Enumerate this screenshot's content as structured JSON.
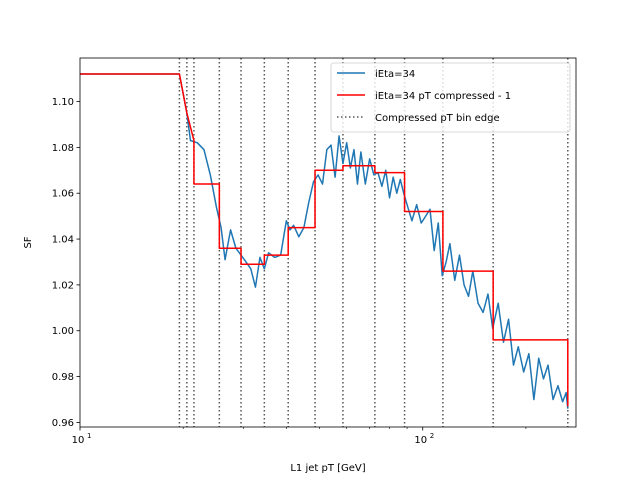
{
  "chart_data": {
    "type": "line",
    "xscale": "log",
    "xlim": [
      10,
      280
    ],
    "ylim": [
      0.958,
      1.119
    ],
    "xlabel": "L1 jet pT [GeV]",
    "ylabel": "SF",
    "grid": false,
    "legend_position": "top-right",
    "x_tick_labels": [
      {
        "value": 10,
        "base": "10",
        "exp": "1"
      },
      {
        "value": 100,
        "base": "10",
        "exp": "2"
      }
    ],
    "y_ticks": [
      0.96,
      0.98,
      1.0,
      1.02,
      1.04,
      1.06,
      1.08,
      1.1
    ],
    "y_tick_labels": [
      "0.96",
      "0.98",
      "1.00",
      "1.02",
      "1.04",
      "1.06",
      "1.08",
      "1.10"
    ],
    "bin_edges": [
      19.5,
      20.5,
      21.5,
      25.5,
      29.5,
      34.5,
      40.5,
      48.5,
      58.5,
      72.5,
      88.5,
      114.5,
      160.5,
      265
    ],
    "series": [
      {
        "name": "iEta=34",
        "color": "#1f77b4",
        "style": "solid",
        "x": [
          10,
          19.5,
          20.5,
          21,
          22,
          23,
          24,
          25,
          25.8,
          26.5,
          27.5,
          28.5,
          29.5,
          30.5,
          31.5,
          32.5,
          33.5,
          34.5,
          35.5,
          37,
          38.5,
          40,
          41,
          42,
          43.5,
          45,
          46.5,
          48,
          49.5,
          51,
          52.5,
          54,
          55.5,
          57,
          58.5,
          60,
          61.5,
          63,
          64.5,
          66,
          68,
          70,
          72,
          74,
          76,
          78,
          80,
          82,
          84,
          86,
          88,
          90,
          93,
          96,
          99,
          102,
          105,
          108,
          111,
          114,
          117,
          120,
          124,
          128,
          132,
          136,
          140,
          145,
          150,
          155,
          160,
          166,
          172,
          178,
          184,
          190,
          197,
          204,
          211,
          218,
          225,
          232,
          240,
          248,
          256,
          262,
          265
        ],
        "y": [
          1.112,
          1.112,
          1.095,
          1.083,
          1.082,
          1.079,
          1.068,
          1.054,
          1.045,
          1.031,
          1.044,
          1.036,
          1.033,
          1.03,
          1.027,
          1.019,
          1.032,
          1.027,
          1.034,
          1.032,
          1.033,
          1.048,
          1.044,
          1.046,
          1.041,
          1.045,
          1.056,
          1.065,
          1.068,
          1.064,
          1.079,
          1.081,
          1.067,
          1.085,
          1.073,
          1.082,
          1.071,
          1.079,
          1.064,
          1.078,
          1.064,
          1.075,
          1.068,
          1.069,
          1.063,
          1.07,
          1.058,
          1.067,
          1.06,
          1.066,
          1.06,
          1.055,
          1.048,
          1.055,
          1.047,
          1.05,
          1.053,
          1.035,
          1.047,
          1.024,
          1.03,
          1.038,
          1.022,
          1.033,
          1.02,
          1.015,
          1.026,
          1.012,
          1.008,
          1.016,
          1.001,
          1.012,
          0.995,
          1.005,
          0.985,
          0.993,
          0.982,
          0.99,
          0.97,
          0.988,
          0.979,
          0.985,
          0.97,
          0.976,
          0.969,
          0.973,
          0.966
        ]
      },
      {
        "name": "iEta=34 pT compressed - 1",
        "color": "#ff0000",
        "style": "step",
        "x": [
          10,
          19.5,
          20.5,
          21.5,
          21.5,
          25.5,
          25.5,
          29.5,
          29.5,
          34.5,
          34.5,
          40.5,
          40.5,
          48.5,
          48.5,
          58.5,
          58.5,
          72.5,
          72.5,
          88.5,
          88.5,
          114.5,
          114.5,
          160.5,
          160.5,
          265,
          265
        ],
        "y": [
          1.112,
          1.112,
          1.095,
          1.083,
          1.064,
          1.064,
          1.036,
          1.036,
          1.029,
          1.029,
          1.033,
          1.033,
          1.045,
          1.045,
          1.07,
          1.07,
          1.072,
          1.072,
          1.069,
          1.069,
          1.052,
          1.052,
          1.026,
          1.026,
          0.996,
          0.996,
          0.967
        ]
      },
      {
        "name": "Compressed pT bin edge",
        "color": "#555555",
        "style": "dotted"
      }
    ]
  }
}
